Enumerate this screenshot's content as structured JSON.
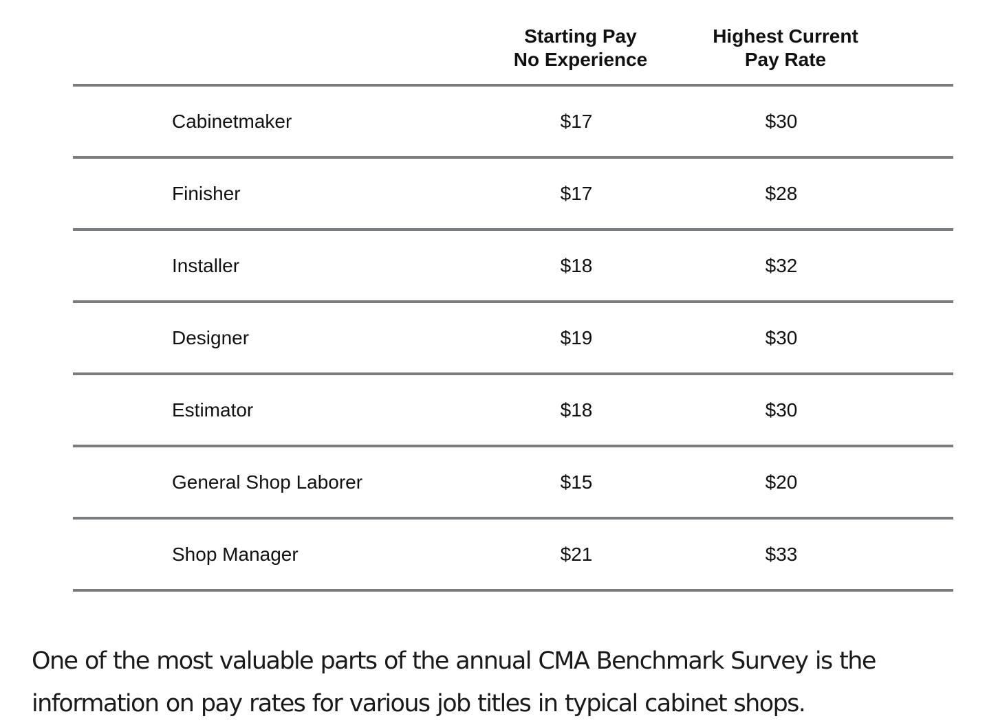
{
  "table": {
    "headers": {
      "starting_pay_line1": "Starting Pay",
      "starting_pay_line2": "No Experience",
      "highest_pay_line1": "Highest Current",
      "highest_pay_line2": "Pay Rate"
    },
    "rows": [
      {
        "title": "Cabinetmaker",
        "starting": "$17",
        "highest": "$30"
      },
      {
        "title": "Finisher",
        "starting": "$17",
        "highest": "$28"
      },
      {
        "title": "Installer",
        "starting": "$18",
        "highest": "$32"
      },
      {
        "title": "Designer",
        "starting": "$19",
        "highest": "$30"
      },
      {
        "title": "Estimator",
        "starting": "$18",
        "highest": "$30"
      },
      {
        "title": "General Shop Laborer",
        "starting": "$15",
        "highest": "$20"
      },
      {
        "title": "Shop Manager",
        "starting": "$21",
        "highest": "$33"
      }
    ]
  },
  "caption": "One of the most valuable parts of the annual CMA Benchmark Survey is the information on pay rates for various job titles in typical cabinet shops.",
  "colors": {
    "rule": "#7a7d7f",
    "text": "#111111"
  }
}
